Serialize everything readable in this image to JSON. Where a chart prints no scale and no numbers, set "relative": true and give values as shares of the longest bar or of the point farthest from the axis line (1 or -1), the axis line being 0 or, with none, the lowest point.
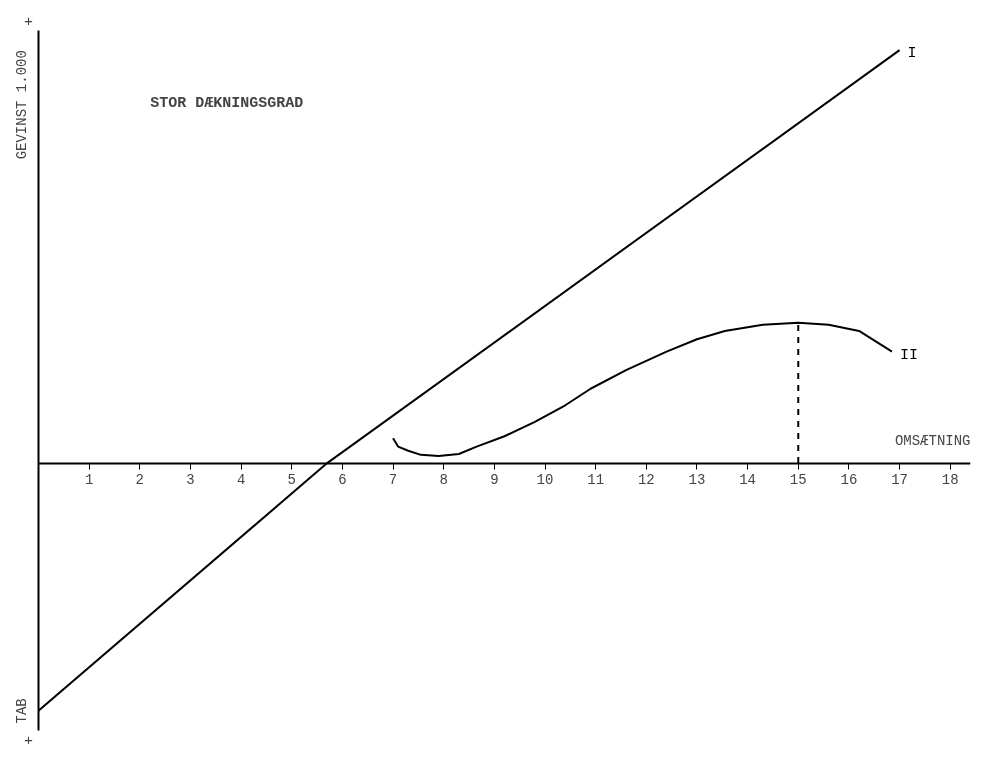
{
  "chart_data": {
    "type": "line",
    "relative": true,
    "title": "STOR DÆKNINGSGRAD",
    "xlabel": "OMSÆTNING",
    "ylabel": "GEVINST 1.000",
    "xlim": [
      0,
      18.4
    ],
    "xticks": [
      1,
      2,
      3,
      4,
      5,
      6,
      7,
      8,
      9,
      10,
      11,
      12,
      13,
      14,
      15,
      16,
      17,
      18
    ],
    "annotations": [
      "+",
      "+",
      {
        "text": "TAB",
        "x": 0,
        "y": -0.6
      }
    ],
    "grid": false,
    "marker": "none",
    "series": [
      {
        "name": "I",
        "color": "#000000",
        "x": [
          0,
          5.7,
          17.0
        ],
        "values": [
          -0.6,
          0,
          1.0
        ]
      },
      {
        "name": "II",
        "color": "#000000",
        "x": [
          7.0,
          7.1,
          7.3,
          7.55,
          7.9,
          8.3,
          8.65,
          9.2,
          9.8,
          10.4,
          10.9,
          11.6,
          12.4,
          13.0,
          13.55,
          14.3,
          15.0,
          15.6,
          16.2,
          16.85
        ],
        "values": [
          0.06,
          0.04,
          0.03,
          0.02,
          0.017,
          0.022,
          0.04,
          0.065,
          0.1,
          0.14,
          0.18,
          0.225,
          0.27,
          0.3,
          0.32,
          0.335,
          0.34,
          0.335,
          0.32,
          0.27
        ]
      },
      {
        "color": "#000000",
        "x": [
          15,
          15
        ],
        "values": [
          0,
          0.34
        ],
        "line_style": "dashed"
      }
    ]
  }
}
